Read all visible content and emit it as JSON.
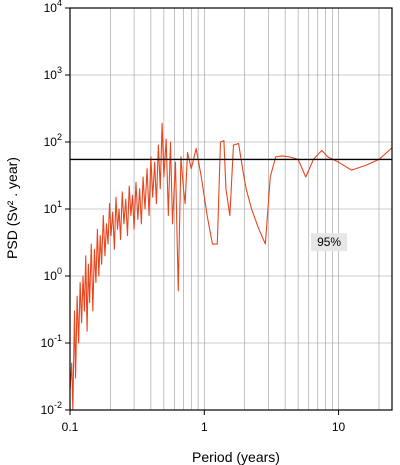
{
  "chart_data": {
    "type": "line",
    "xlabel": "Period (years)",
    "ylabel": "PSD (Sv² . year)",
    "xscale": "log",
    "yscale": "log",
    "xlim": [
      0.1,
      25
    ],
    "ylim": [
      0.01,
      10000
    ],
    "x_ticks": [
      {
        "value": 0.1,
        "label": "0.1"
      },
      {
        "value": 1,
        "label": "1"
      },
      {
        "value": 10,
        "label": "10"
      }
    ],
    "y_ticks": [
      {
        "value": 0.01,
        "base": "10",
        "exp": "-2"
      },
      {
        "value": 0.1,
        "base": "10",
        "exp": "-1"
      },
      {
        "value": 1,
        "base": "10",
        "exp": "0"
      },
      {
        "value": 10,
        "base": "10",
        "exp": "1"
      },
      {
        "value": 100,
        "base": "10",
        "exp": "2"
      },
      {
        "value": 1000,
        "base": "10",
        "exp": "3"
      },
      {
        "value": 10000,
        "base": "10",
        "exp": "4"
      }
    ],
    "grid": true,
    "line_color": "#e8461e",
    "threshold": {
      "value": 55,
      "label": "95%",
      "label_at_x": 8.5,
      "label_at_y": 3.2
    },
    "series": [
      {
        "x": [
          0.1,
          0.103,
          0.105,
          0.108,
          0.11,
          0.113,
          0.116,
          0.119,
          0.122,
          0.125,
          0.128,
          0.131,
          0.134,
          0.137,
          0.14,
          0.144,
          0.148,
          0.152,
          0.156,
          0.16,
          0.164,
          0.168,
          0.172,
          0.177,
          0.182,
          0.187,
          0.192,
          0.197,
          0.202,
          0.208,
          0.214,
          0.22,
          0.226,
          0.232,
          0.238,
          0.245,
          0.252,
          0.26,
          0.268,
          0.276,
          0.284,
          0.292,
          0.3,
          0.31,
          0.32,
          0.33,
          0.34,
          0.35,
          0.362,
          0.375,
          0.388,
          0.4,
          0.413,
          0.427,
          0.44,
          0.455,
          0.47,
          0.485,
          0.5,
          0.52,
          0.54,
          0.56,
          0.58,
          0.61,
          0.64,
          0.67,
          0.7,
          0.72,
          0.75,
          0.8,
          0.87,
          0.95,
          1.05,
          1.15,
          1.25,
          1.32,
          1.4,
          1.45,
          1.55,
          1.65,
          1.8,
          1.95,
          2.05,
          2.25,
          2.55,
          2.85,
          3.1,
          3.4,
          3.8,
          4.3,
          5.0,
          5.7,
          6.5,
          7.5,
          8.3,
          10.0,
          12.5,
          16.0,
          20.0,
          25.0
        ],
        "y": [
          0.02,
          0.05,
          0.01,
          0.3,
          0.03,
          0.5,
          0.1,
          0.8,
          0.2,
          1.0,
          0.3,
          2.0,
          0.15,
          1.5,
          0.4,
          3.0,
          0.3,
          2.5,
          0.8,
          5.0,
          1.0,
          4.0,
          1.5,
          8.0,
          2.0,
          6.0,
          3.0,
          12,
          4.0,
          9.0,
          2.5,
          15,
          5.0,
          10,
          3.5,
          18,
          6.0,
          14,
          4.0,
          22,
          8.0,
          16,
          5.0,
          25,
          7.0,
          20,
          6.0,
          30,
          10,
          40,
          8.0,
          60,
          15,
          50,
          12,
          90,
          20,
          190,
          30,
          110,
          8.0,
          100,
          6.0,
          50,
          0.6,
          60,
          20,
          12,
          70,
          40,
          80,
          30,
          8.0,
          3.0,
          3.0,
          100,
          105,
          20,
          8.0,
          90,
          95,
          35,
          20,
          10,
          5.0,
          3.0,
          30,
          60,
          62,
          60,
          55,
          30,
          55,
          75,
          60,
          50,
          38,
          45,
          55,
          82
        ]
      }
    ]
  }
}
